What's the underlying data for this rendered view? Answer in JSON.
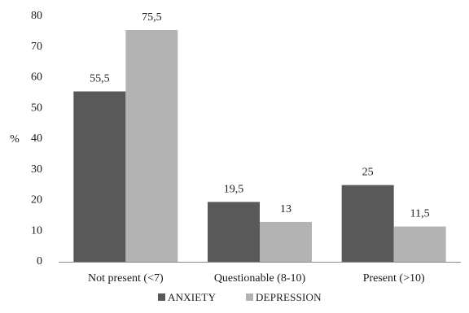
{
  "chart_data": {
    "type": "bar",
    "categories": [
      "Not present (<7)",
      "Questionable (8-10)",
      "Present (>10)"
    ],
    "series": [
      {
        "name": "ANXIETY",
        "values": [
          55.5,
          19.5,
          25
        ],
        "labels": [
          "55,5",
          "19,5",
          "25"
        ],
        "color": "#595959"
      },
      {
        "name": "DEPRESSION",
        "values": [
          75.5,
          13,
          11.5
        ],
        "labels": [
          "75,5",
          "13",
          "11,5"
        ],
        "color": "#b3b3b3"
      }
    ],
    "ylabel": "%",
    "ylim": [
      0,
      80
    ],
    "yticks": [
      0,
      10,
      20,
      30,
      40,
      50,
      60,
      70,
      80
    ],
    "grid": false,
    "legend": "bottom"
  }
}
